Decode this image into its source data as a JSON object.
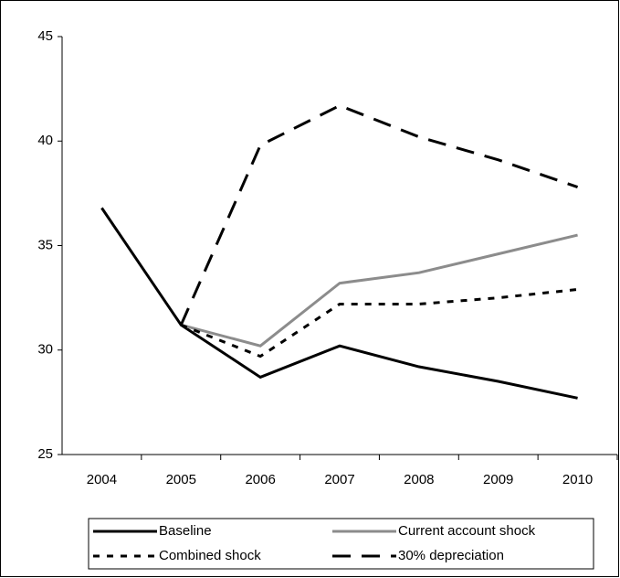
{
  "chart_data": {
    "type": "line",
    "categories": [
      "2004",
      "2005",
      "2006",
      "2007",
      "2008",
      "2009",
      "2010"
    ],
    "series": [
      {
        "name": "Baseline",
        "color": "#000000",
        "dash": "none",
        "values": [
          36.8,
          31.2,
          28.7,
          30.2,
          29.2,
          28.5,
          27.7
        ]
      },
      {
        "name": "Current account shock",
        "color": "#8c8c8c",
        "dash": "none",
        "values": [
          null,
          31.2,
          30.2,
          33.2,
          33.7,
          34.6,
          35.5
        ]
      },
      {
        "name": "Combined shock",
        "color": "#000000",
        "dash": "7,8",
        "values": [
          null,
          31.2,
          29.7,
          32.2,
          32.2,
          32.5,
          32.9
        ]
      },
      {
        "name": "30% depreciation",
        "color": "#000000",
        "dash": "20,12",
        "values": [
          null,
          31.2,
          39.8,
          41.7,
          40.2,
          39.1,
          37.8
        ]
      }
    ],
    "ylim": [
      25,
      45
    ],
    "yticks": [
      25,
      30,
      35,
      40,
      45
    ],
    "grid": false,
    "legend": "bottom"
  }
}
